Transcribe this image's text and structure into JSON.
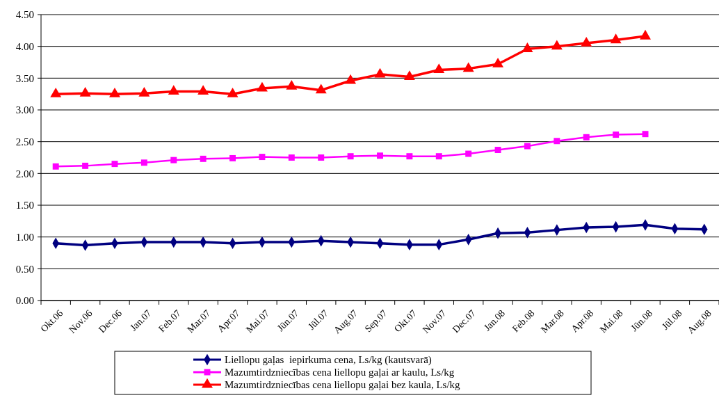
{
  "chart_data": {
    "type": "line",
    "categories": [
      "Okt.06",
      "Nov.06",
      "Dec.06",
      "Jan.07",
      "Feb.07",
      "Mar.07",
      "Apr.07",
      "Mai.07",
      "Jūn.07",
      "Jūl.07",
      "Aug.07",
      "Sep.07",
      "Okt.07",
      "Nov.07",
      "Dec.07",
      "Jan.08",
      "Feb.08",
      "Mar.08",
      "Apr.08",
      "Mai.08",
      "Jūn.08",
      "Jūl.08",
      "Aug.08"
    ],
    "series": [
      {
        "name": "Liellopu gaļas  iepirkuma cena, Ls/kg (kautsvarā)",
        "color": "#000080",
        "marker": "diamond",
        "values": [
          0.9,
          0.87,
          0.9,
          0.92,
          0.92,
          0.92,
          0.9,
          0.92,
          0.92,
          0.94,
          0.92,
          0.9,
          0.88,
          0.88,
          0.96,
          1.06,
          1.07,
          1.11,
          1.15,
          1.16,
          1.19,
          1.13,
          1.12
        ]
      },
      {
        "name": "Mazumtirdzniecības cena liellopu gaļai ar kaulu, Ls/kg",
        "color": "#ff00ff",
        "marker": "square",
        "values": [
          2.11,
          2.12,
          2.15,
          2.17,
          2.21,
          2.23,
          2.24,
          2.26,
          2.25,
          2.25,
          2.27,
          2.28,
          2.27,
          2.27,
          2.31,
          2.37,
          2.43,
          2.51,
          2.57,
          2.61,
          2.62,
          null,
          null
        ]
      },
      {
        "name": "Mazumtirdzniecības cena liellopu gaļai bez kaula, Ls/kg",
        "color": "#ff0000",
        "marker": "triangle",
        "values": [
          3.25,
          3.26,
          3.25,
          3.26,
          3.29,
          3.29,
          3.25,
          3.34,
          3.37,
          3.31,
          3.46,
          3.56,
          3.52,
          3.63,
          3.65,
          3.72,
          3.96,
          4.0,
          4.05,
          4.1,
          4.16,
          null,
          null
        ]
      }
    ],
    "ylim": [
      0,
      4.5
    ],
    "yticks": [
      {
        "value": 0,
        "label": "0.00"
      },
      {
        "value": 0.5,
        "label": "0.50"
      },
      {
        "value": 1,
        "label": "1.00"
      },
      {
        "value": 1.5,
        "label": "1.50"
      },
      {
        "value": 2,
        "label": "2.00"
      },
      {
        "value": 2.5,
        "label": "2.50"
      },
      {
        "value": 3,
        "label": "3.00"
      },
      {
        "value": 3.5,
        "label": "3.50"
      },
      {
        "value": 4,
        "label": "4.00"
      },
      {
        "value": 4.5,
        "label": "4.50"
      }
    ],
    "grid": "y",
    "legend": "bottom",
    "line_style": "solid"
  }
}
